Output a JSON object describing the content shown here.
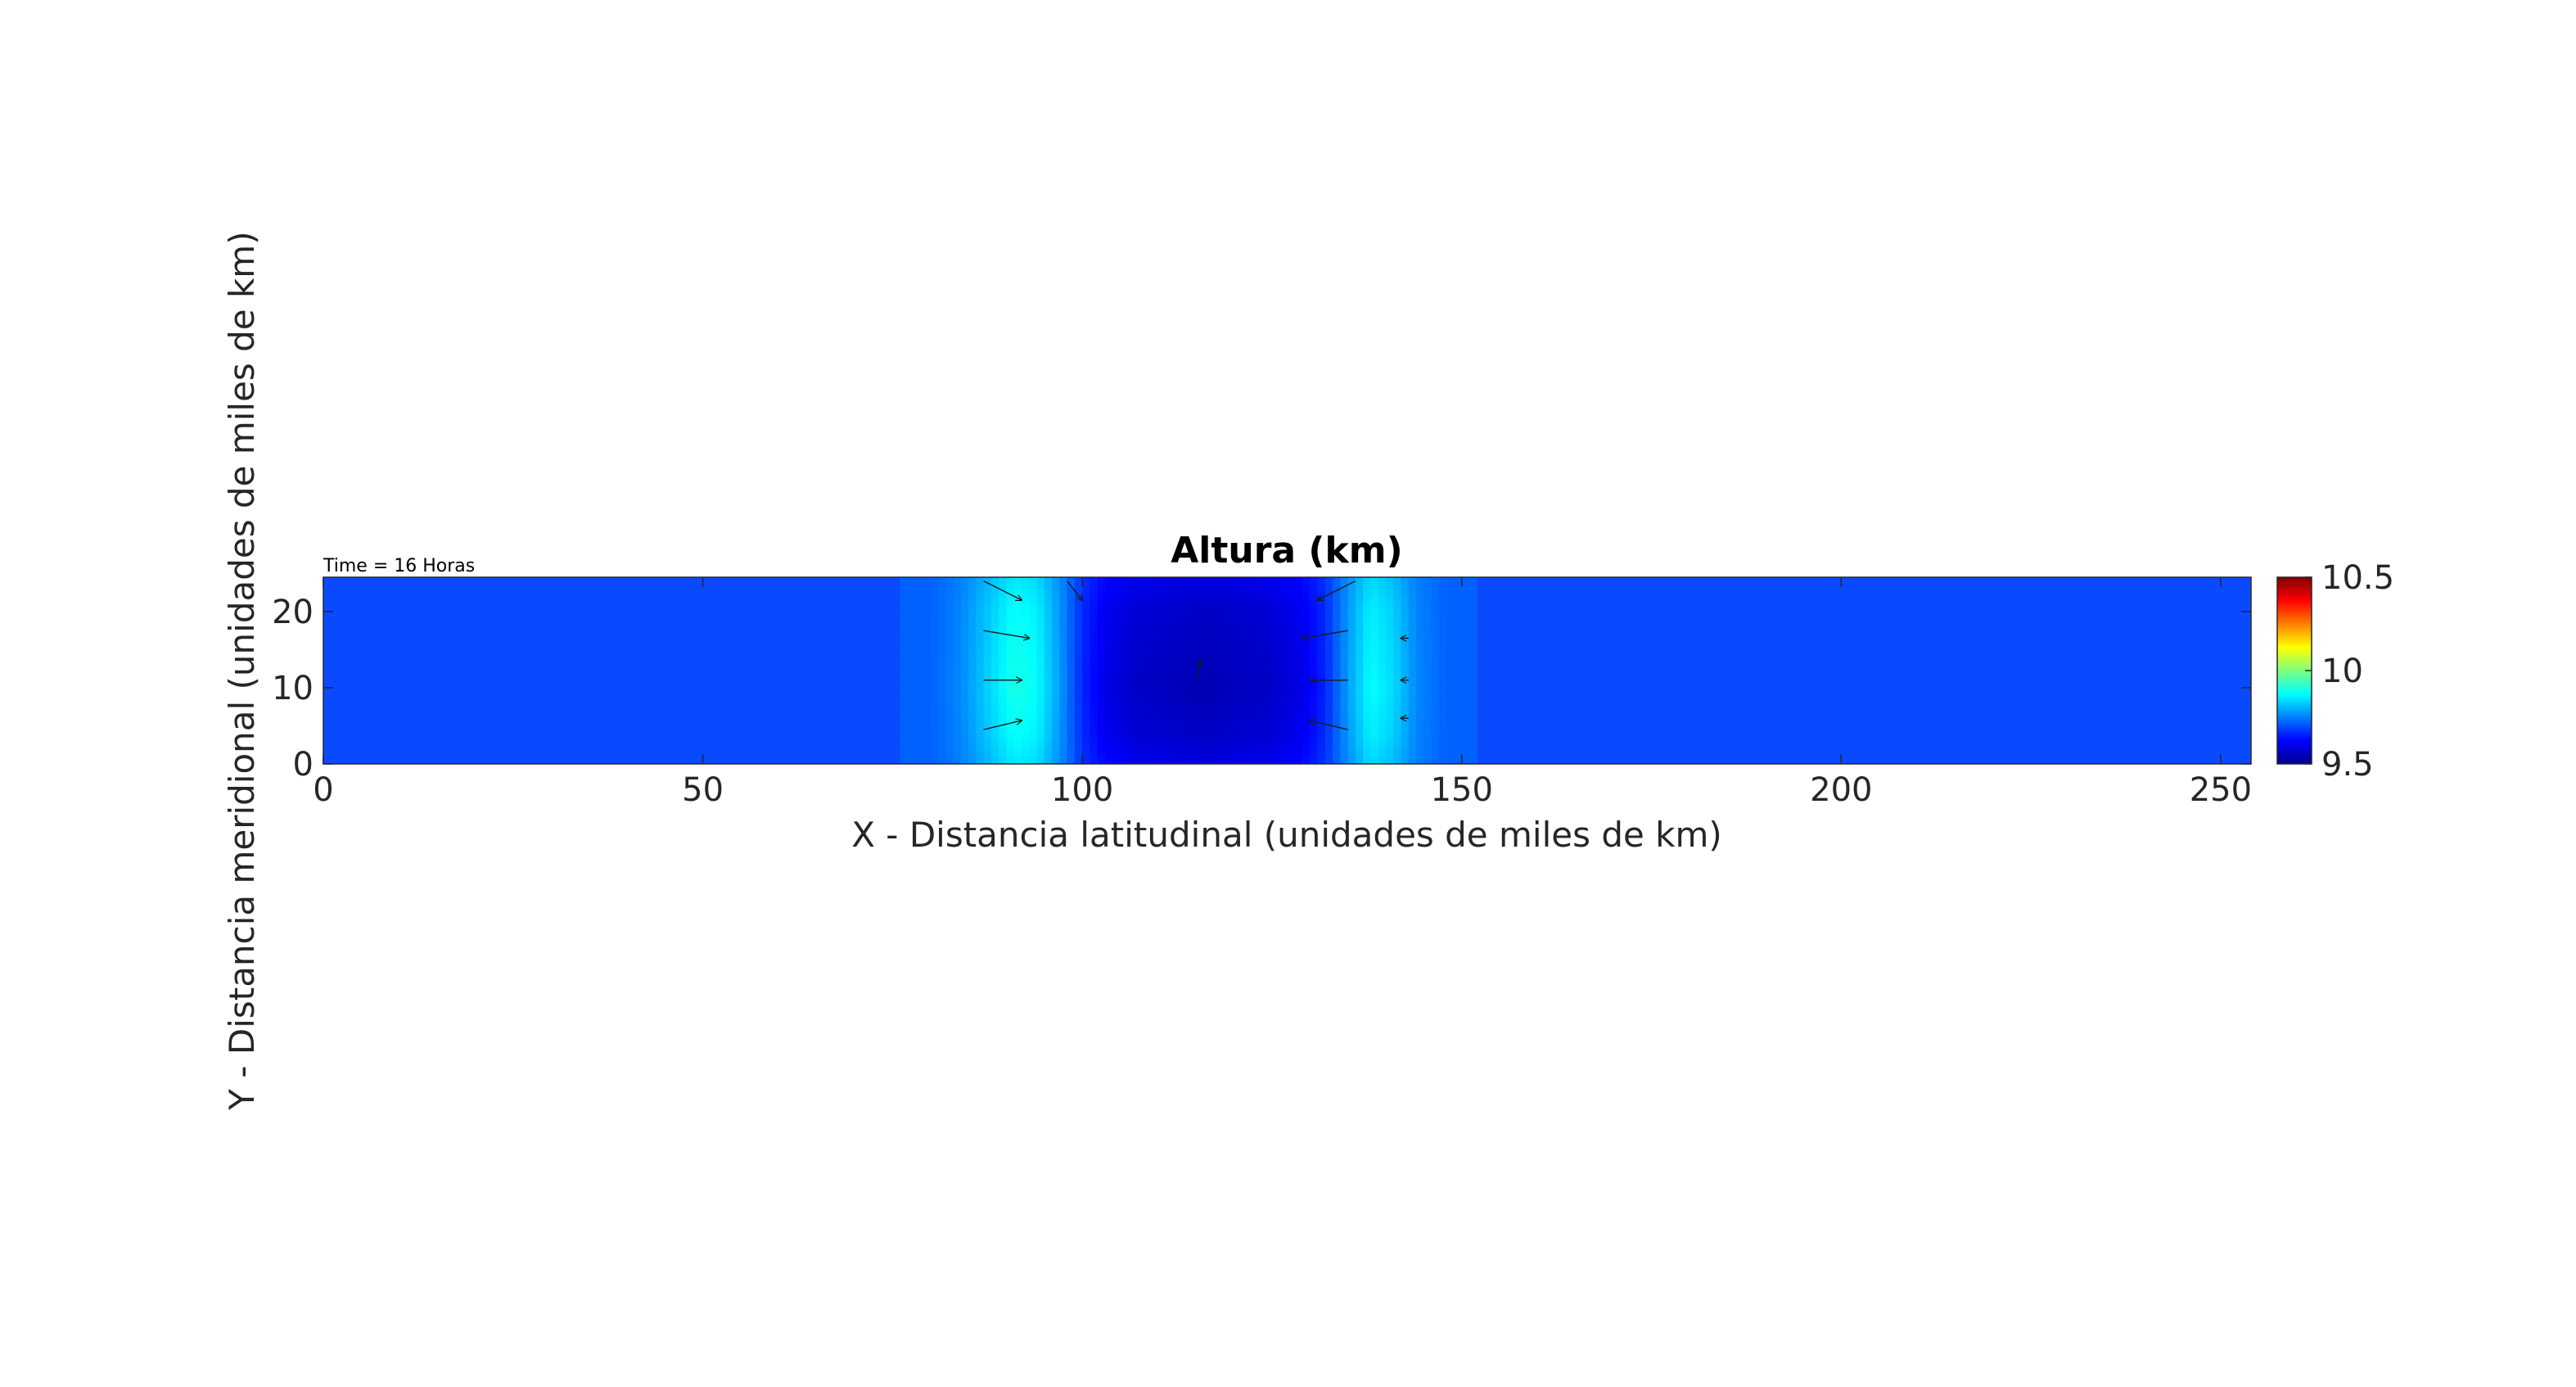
{
  "chart_data": {
    "type": "heatmap",
    "title": "Altura (km)",
    "annotation": "Time = 16 Horas",
    "xlabel": "X - Distancia latitudinal (unidades de miles de km)",
    "ylabel": "Y - Distancia meridional (unidades de miles de km)",
    "xlim": [
      0,
      254
    ],
    "ylim": [
      0,
      24.5
    ],
    "xticks": [
      0,
      50,
      100,
      150,
      200,
      250
    ],
    "yticks": [
      0,
      10,
      20
    ],
    "colorbar": {
      "colormap": "jet",
      "clim": [
        9.5,
        10.5
      ],
      "ticks": [
        10.5,
        10,
        9.5
      ]
    },
    "grid": false,
    "legend": "none",
    "field": {
      "background_value": 9.72,
      "x_profile": [
        {
          "x": 0,
          "h": 9.72
        },
        {
          "x": 80,
          "h": 9.72
        },
        {
          "x": 84,
          "h": 9.76
        },
        {
          "x": 88,
          "h": 9.84
        },
        {
          "x": 91,
          "h": 9.9
        },
        {
          "x": 94,
          "h": 9.88
        },
        {
          "x": 97,
          "h": 9.78
        },
        {
          "x": 100,
          "h": 9.66
        },
        {
          "x": 103,
          "h": 9.6
        },
        {
          "x": 107,
          "h": 9.57
        },
        {
          "x": 116,
          "h": 9.55
        },
        {
          "x": 125,
          "h": 9.57
        },
        {
          "x": 129,
          "h": 9.6
        },
        {
          "x": 132,
          "h": 9.66
        },
        {
          "x": 135,
          "h": 9.78
        },
        {
          "x": 138,
          "h": 9.88
        },
        {
          "x": 141,
          "h": 9.84
        },
        {
          "x": 144,
          "h": 9.76
        },
        {
          "x": 148,
          "h": 9.72
        },
        {
          "x": 254,
          "h": 9.72
        }
      ],
      "y_weight": [
        {
          "y": 0,
          "w": 0.75
        },
        {
          "y": 4,
          "w": 0.9
        },
        {
          "y": 10,
          "w": 1.0
        },
        {
          "y": 20,
          "w": 0.9
        },
        {
          "y": 24.5,
          "w": 0.75
        }
      ]
    },
    "quiver": [
      {
        "x": 87,
        "y": 24.0,
        "u": 5,
        "v": -2.5
      },
      {
        "x": 87,
        "y": 17.5,
        "u": 6,
        "v": -1.0
      },
      {
        "x": 87,
        "y": 11.0,
        "u": 5,
        "v": 0
      },
      {
        "x": 87,
        "y": 4.5,
        "u": 5,
        "v": 1.2
      },
      {
        "x": 98,
        "y": 24.0,
        "u": 2,
        "v": -2.5
      },
      {
        "x": 115,
        "y": 11.0,
        "u": 0.6,
        "v": 2.5
      },
      {
        "x": 136,
        "y": 24.0,
        "u": -5,
        "v": -2.5
      },
      {
        "x": 135,
        "y": 17.5,
        "u": -6,
        "v": -1.0
      },
      {
        "x": 135,
        "y": 11.0,
        "u": -5,
        "v": 0
      },
      {
        "x": 135,
        "y": 4.5,
        "u": -5,
        "v": 1.2
      },
      {
        "x": 143,
        "y": 16.5,
        "u": -1,
        "v": 0
      },
      {
        "x": 143,
        "y": 11.0,
        "u": -1,
        "v": 0
      },
      {
        "x": 143,
        "y": 6.0,
        "u": -1,
        "v": 0
      }
    ],
    "colors": {
      "frame": "#262626",
      "text": "#262626",
      "title": "#000000",
      "arrows": "#1a1a1a"
    }
  }
}
